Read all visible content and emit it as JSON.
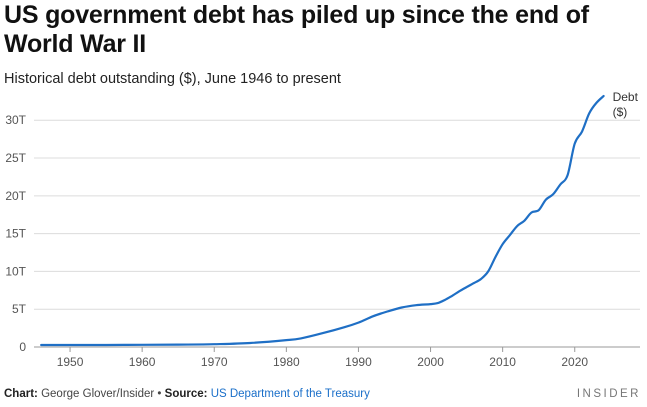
{
  "chart_data": {
    "type": "line",
    "title": "US government debt has piled up since the end of World War II",
    "subtitle": "Historical debt outstanding ($), June 1946 to present",
    "xlabel": "",
    "ylabel": "",
    "xlim": [
      1945,
      2026
    ],
    "ylim": [
      0,
      34
    ],
    "x_ticks": [
      "1950",
      "1960",
      "1970",
      "1980",
      "1990",
      "2000",
      "2010",
      "2020"
    ],
    "y_ticks": [
      "0",
      "5T",
      "10T",
      "15T",
      "20T",
      "25T",
      "30T"
    ],
    "grid": true,
    "line_color": "#1f6fc5",
    "series": [
      {
        "name": "Debt ($)",
        "x": [
          1946,
          1950,
          1955,
          1960,
          1965,
          1970,
          1975,
          1980,
          1982,
          1985,
          1988,
          1990,
          1992,
          1994,
          1996,
          1998,
          2000,
          2001,
          2002,
          2003,
          2004,
          2005,
          2006,
          2007,
          2008,
          2009,
          2010,
          2011,
          2012,
          2013,
          2014,
          2015,
          2016,
          2017,
          2018,
          2019,
          2020,
          2021,
          2022,
          2023,
          2024
        ],
        "y": [
          0.27,
          0.26,
          0.27,
          0.29,
          0.32,
          0.37,
          0.53,
          0.91,
          1.14,
          1.82,
          2.6,
          3.23,
          4.06,
          4.69,
          5.22,
          5.53,
          5.67,
          5.81,
          6.23,
          6.78,
          7.38,
          7.93,
          8.45,
          9.0,
          10.0,
          11.9,
          13.6,
          14.8,
          16.0,
          16.7,
          17.8,
          18.1,
          19.5,
          20.2,
          21.5,
          22.7,
          26.9,
          28.5,
          30.9,
          32.3,
          33.2
        ]
      }
    ],
    "series_label_lines": [
      "Debt",
      "($)"
    ]
  },
  "footer": {
    "chart_prefix": "Chart:",
    "chart_author": "George Glover/Insider",
    "separator": "•",
    "source_prefix": "Source:",
    "source_name": "US Department of the Treasury"
  },
  "brand": "INSIDER"
}
